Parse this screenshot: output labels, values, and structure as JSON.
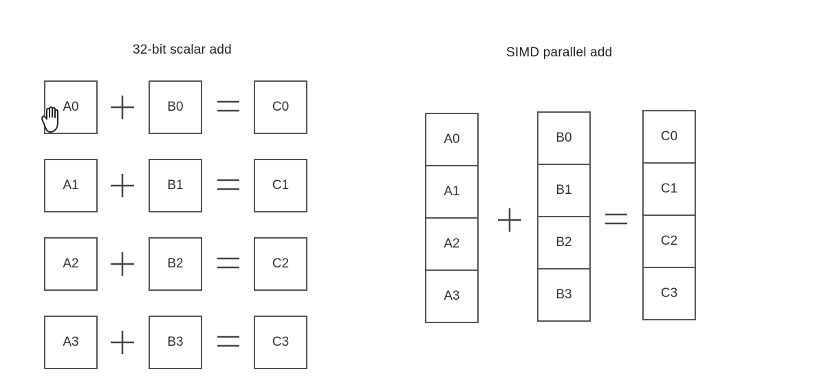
{
  "scalar": {
    "title": "32-bit scalar add",
    "rows": [
      {
        "a": "A0",
        "b": "B0",
        "c": "C0"
      },
      {
        "a": "A1",
        "b": "B1",
        "c": "C1"
      },
      {
        "a": "A2",
        "b": "B2",
        "c": "C2"
      },
      {
        "a": "A3",
        "b": "B3",
        "c": "C3"
      }
    ]
  },
  "simd": {
    "title": "SIMD parallel add",
    "a": [
      "A0",
      "A1",
      "A2",
      "A3"
    ],
    "b": [
      "B0",
      "B1",
      "B2",
      "B3"
    ],
    "c": [
      "C0",
      "C1",
      "C2",
      "C3"
    ]
  },
  "icons": {
    "cursor": "hand-pointer-icon",
    "plus": "plus-icon",
    "equals": "equals-icon"
  }
}
